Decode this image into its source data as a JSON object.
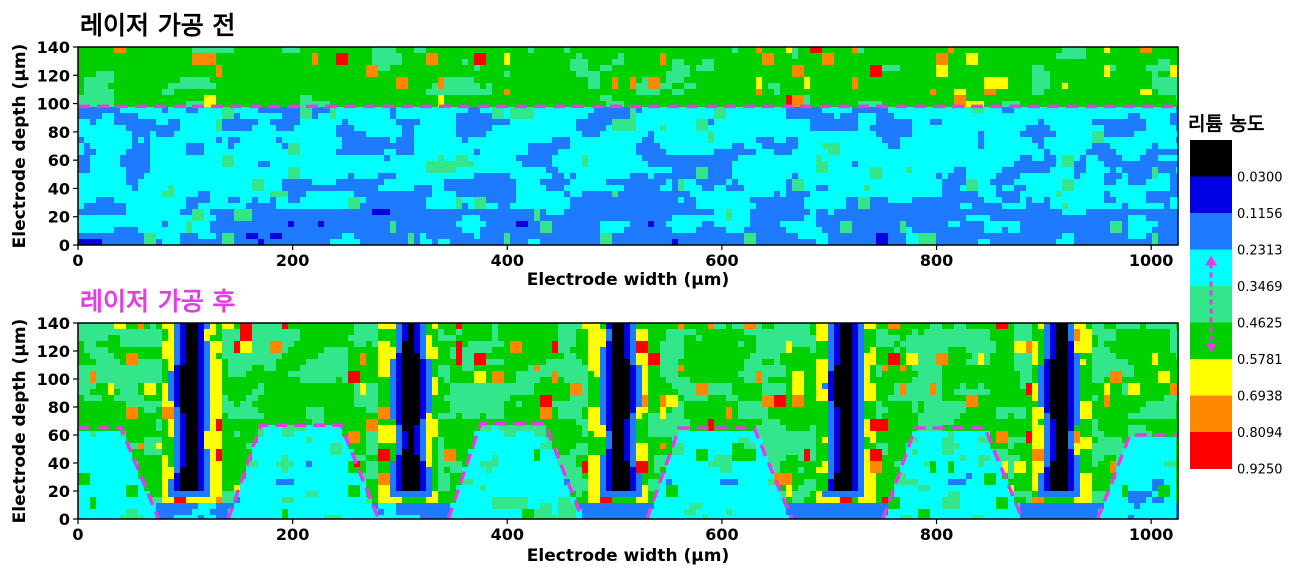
{
  "chart_data": [
    {
      "type": "heatmap",
      "title": "레이저 가공 전",
      "title_color": "#000000",
      "xlabel": "Electrode width (µm)",
      "ylabel": "Electrode depth (µm)",
      "xlim": [
        0,
        1025
      ],
      "ylim": [
        0,
        140
      ],
      "x_ticks": [
        "0",
        "200",
        "400",
        "600",
        "800",
        "1000"
      ],
      "y_ticks": [
        "0",
        "20",
        "40",
        "60",
        "80",
        "100",
        "120",
        "140"
      ],
      "guide": {
        "kind": "horizontal-dashed-line",
        "color": "#e040e0",
        "y": 98
      },
      "field_description": "upper band (depth > ~98 µm) mostly 0.46–0.58 green with yellow/red spots; lower band mostly 0.12–0.35 blue/cyan"
    },
    {
      "type": "heatmap",
      "title": "레이저 가공 후",
      "title_color": "#e040e0",
      "xlabel": "Electrode width (µm)",
      "ylabel": "Electrode depth (µm)",
      "xlim": [
        0,
        1025
      ],
      "ylim": [
        0,
        140
      ],
      "x_ticks": [
        "0",
        "200",
        "400",
        "600",
        "800",
        "1000"
      ],
      "y_ticks": [
        "0",
        "20",
        "40",
        "60",
        "80",
        "100",
        "120",
        "140"
      ],
      "channels_x": [
        105,
        310,
        505,
        715,
        915
      ],
      "guide": {
        "kind": "trapezoid-dashed-lines",
        "color": "#e040e0",
        "segments": [
          [
            [
              0,
              65
            ],
            [
              40,
              65
            ],
            [
              75,
              0
            ]
          ],
          [
            [
              140,
              0
            ],
            [
              170,
              67
            ],
            [
              245,
              67
            ],
            [
              280,
              0
            ]
          ],
          [
            [
              345,
              0
            ],
            [
              375,
              68
            ],
            [
              435,
              68
            ],
            [
              470,
              0
            ]
          ],
          [
            [
              530,
              0
            ],
            [
              560,
              65
            ],
            [
              630,
              65
            ],
            [
              665,
              0
            ]
          ],
          [
            [
              750,
              0
            ],
            [
              780,
              65
            ],
            [
              845,
              65
            ],
            [
              880,
              0
            ]
          ],
          [
            [
              950,
              0
            ],
            [
              980,
              60
            ],
            [
              1025,
              60
            ]
          ]
        ]
      }
    }
  ],
  "legend": {
    "title": "리튬 농도",
    "levels": [
      {
        "color": "#000000",
        "label": ""
      },
      {
        "color": "#0000e0",
        "label": "0.0300"
      },
      {
        "color": "#1e7bff",
        "label": "0.1156"
      },
      {
        "color": "#00ffff",
        "label": "0.2313"
      },
      {
        "color": "#33e68c",
        "label": "0.3469"
      },
      {
        "color": "#00d000",
        "label": "0.4625"
      },
      {
        "color": "#ffff00",
        "label": "0.5781"
      },
      {
        "color": "#ff8800",
        "label": "0.6938"
      },
      {
        "color": "#ff0000",
        "label": "0.8094"
      },
      {
        "color": "",
        "label": "0.9250"
      }
    ],
    "arrow": {
      "color": "#e040e0",
      "from_value": 0.2313,
      "to_value": 0.5781
    }
  }
}
